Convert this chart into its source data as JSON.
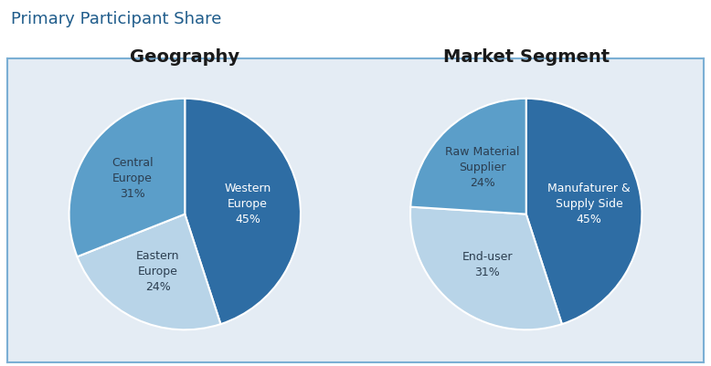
{
  "title": "Primary Participant Share",
  "title_color": "#1F5C8B",
  "background_color": "#E4ECF4",
  "outer_background": "#FFFFFF",
  "border_color": "#7BAFD4",
  "geo_title": "Geography",
  "seg_title": "Market Segment",
  "geo_labels": [
    "Western\nEurope\n45%",
    "Eastern\nEurope\n24%",
    "Central\nEurope\n31%"
  ],
  "geo_label_colors": [
    "#FFFFFF",
    "#2c3e50",
    "#2c3e50"
  ],
  "geo_values": [
    45,
    24,
    31
  ],
  "geo_colors": [
    "#2E6DA4",
    "#B8D4E8",
    "#5B9EC9"
  ],
  "geo_startangle": 90,
  "seg_labels": [
    "Manufaturer &\nSupply Side\n45%",
    "End-user\n31%",
    "Raw Material\nSupplier\n24%"
  ],
  "seg_label_colors": [
    "#FFFFFF",
    "#2c3e50",
    "#2c3e50"
  ],
  "seg_values": [
    45,
    31,
    24
  ],
  "seg_colors": [
    "#2E6DA4",
    "#B8D4E8",
    "#5B9EC9"
  ],
  "seg_startangle": 90,
  "label_fontsize": 9,
  "subtitle_fontsize": 14,
  "title_fontsize": 13
}
